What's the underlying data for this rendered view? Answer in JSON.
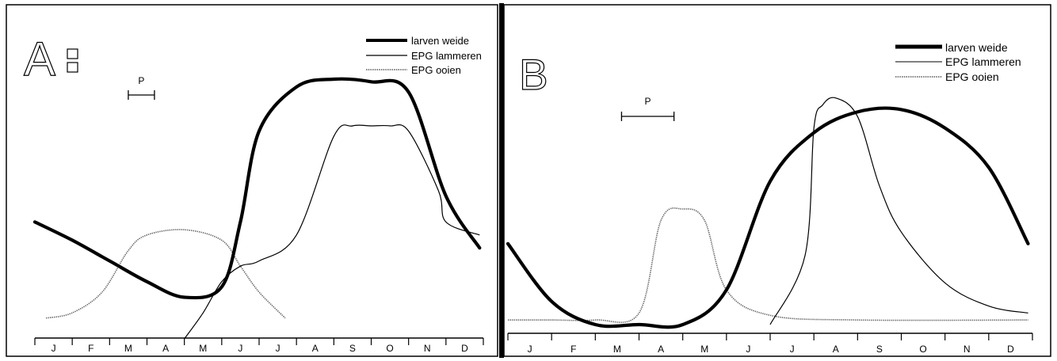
{
  "chart_data": [
    {
      "panel": "A",
      "type": "line",
      "title": "",
      "xlabel": "",
      "ylabel": "",
      "x_categories": [
        "J",
        "F",
        "M",
        "A",
        "M",
        "J",
        "J",
        "A",
        "S",
        "O",
        "N",
        "D"
      ],
      "period_marker": {
        "label": "P",
        "start_month": 2.5,
        "end_month": 3.2
      },
      "legend_placement": "top-right",
      "series": [
        {
          "name": "larven weide",
          "style": "thick",
          "x": [
            0,
            1,
            2,
            3,
            4,
            5,
            5.5,
            6,
            7,
            8,
            9,
            10,
            11,
            11.9
          ],
          "y": [
            45,
            38,
            30,
            22,
            16,
            20,
            45,
            80,
            97,
            100,
            99,
            95,
            55,
            35
          ]
        },
        {
          "name": "EPG lammeren",
          "style": "thin",
          "x": [
            4,
            4.5,
            5,
            5.5,
            6,
            7,
            8,
            8.5,
            9,
            9.5,
            10,
            10.8,
            11,
            11.9
          ],
          "y": [
            0,
            10,
            22,
            28,
            30,
            40,
            78,
            82,
            82,
            82,
            80,
            57,
            45,
            40
          ]
        },
        {
          "name": "EPG ooien",
          "style": "dotted",
          "x": [
            0.3,
            1,
            1.8,
            2.5,
            3,
            4,
            5,
            5.5,
            6,
            6.7
          ],
          "y": [
            8,
            10,
            18,
            34,
            40,
            42,
            38,
            28,
            18,
            8
          ]
        }
      ]
    },
    {
      "panel": "B",
      "type": "line",
      "title": "",
      "xlabel": "",
      "ylabel": "",
      "x_categories": [
        "J",
        "F",
        "M",
        "A",
        "M",
        "J",
        "J",
        "A",
        "S",
        "O",
        "N",
        "D"
      ],
      "period_marker": {
        "label": "P",
        "start_month": 2.6,
        "end_month": 3.8
      },
      "legend_placement": "top-right",
      "series": [
        {
          "name": "larven weide",
          "style": "thick",
          "x": [
            0,
            1,
            2,
            3,
            4,
            5,
            6,
            7,
            8,
            9,
            10,
            11,
            11.9
          ],
          "y": [
            35,
            10,
            0,
            0,
            0,
            15,
            62,
            83,
            92,
            93,
            85,
            68,
            35
          ]
        },
        {
          "name": "EPG lammeren",
          "style": "thin",
          "x": [
            6,
            6.8,
            7,
            7.2,
            7.5,
            8,
            8.5,
            9,
            10,
            11,
            11.9
          ],
          "y": [
            0,
            30,
            85,
            95,
            98,
            90,
            60,
            40,
            18,
            8,
            5
          ]
        },
        {
          "name": "EPG ooien",
          "style": "dotted",
          "x": [
            0,
            1,
            2,
            3,
            3.5,
            4,
            4.5,
            5,
            6,
            8,
            11.9
          ],
          "y": [
            2,
            2,
            2,
            5,
            45,
            50,
            45,
            15,
            4,
            2,
            2
          ]
        }
      ]
    }
  ],
  "panels": [
    {
      "label": "A",
      "legend": [
        "larven weide",
        "EPG lammeren",
        "EPG ooien"
      ]
    },
    {
      "label": "B",
      "legend": [
        "larven weide",
        "EPG lammeren",
        "EPG ooien"
      ]
    }
  ]
}
